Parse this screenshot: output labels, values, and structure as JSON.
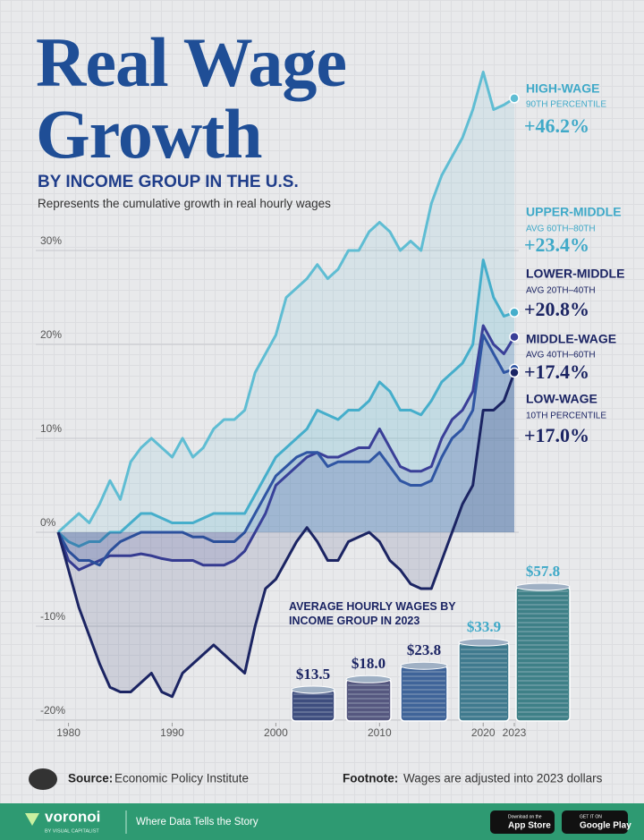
{
  "header": {
    "title": "Real Wage Growth",
    "subtitle": "BY INCOME GROUP IN THE U.S.",
    "description": "Represents the cumulative growth in real hourly wages"
  },
  "chart_data": [
    {
      "type": "line",
      "x": [
        1979,
        1980,
        1981,
        1982,
        1983,
        1984,
        1985,
        1986,
        1987,
        1988,
        1989,
        1990,
        1991,
        1992,
        1993,
        1994,
        1995,
        1996,
        1997,
        1998,
        1999,
        2000,
        2001,
        2002,
        2003,
        2004,
        2005,
        2006,
        2007,
        2008,
        2009,
        2010,
        2011,
        2012,
        2013,
        2014,
        2015,
        2016,
        2017,
        2018,
        2019,
        2020,
        2021,
        2022,
        2023
      ],
      "xlim": [
        1979,
        2023
      ],
      "xticks": [
        1980,
        1990,
        2000,
        2010,
        2020,
        2023
      ],
      "ylim": [
        -21,
        50
      ],
      "yticks": [
        {
          "value": -20,
          "label": "-20%"
        },
        {
          "value": -10,
          "label": "-10%"
        },
        {
          "value": 0,
          "label": "0%"
        },
        {
          "value": 10,
          "label": "10%"
        },
        {
          "value": 20,
          "label": "20%"
        },
        {
          "value": 30,
          "label": "30%"
        }
      ],
      "grid": true,
      "series": [
        {
          "name": "HIGH-WAGE",
          "sublabel": "90TH PERCENTILE",
          "end_label": "+46.2%",
          "color": "#5fbdd3",
          "values": [
            0,
            1,
            2,
            1,
            3,
            5.5,
            3.5,
            7.5,
            9,
            10,
            9,
            8,
            10,
            8,
            9,
            11,
            12,
            12,
            13,
            17,
            19,
            21,
            25,
            26,
            27,
            28.5,
            27,
            28,
            30,
            30,
            32,
            33,
            32,
            30,
            31,
            30,
            35,
            38,
            40,
            42,
            45,
            49,
            45,
            45.5,
            46.2
          ]
        },
        {
          "name": "UPPER-MIDDLE",
          "sublabel": "AVG 60TH–80TH",
          "end_label": "+23.4%",
          "color": "#45aecb",
          "values": [
            0,
            -1,
            -1.5,
            -1,
            -1,
            0,
            0,
            1,
            2,
            2,
            1.5,
            1,
            1,
            1,
            1.5,
            2,
            2,
            2,
            2,
            4,
            6,
            8,
            9,
            10,
            11,
            13,
            12.5,
            12,
            13,
            13,
            14,
            16,
            15,
            13,
            13,
            12.5,
            14,
            16,
            17,
            18,
            20,
            29,
            25,
            23,
            23.4
          ]
        },
        {
          "name": "LOWER-MIDDLE",
          "sublabel": "AVG 20TH–40TH",
          "end_label": "+20.8%",
          "color": "#3a3f98",
          "values": [
            0,
            -3,
            -4,
            -3.5,
            -3,
            -2.5,
            -2.5,
            -2.5,
            -2.3,
            -2.5,
            -2.8,
            -3,
            -3,
            -3,
            -3.5,
            -3.5,
            -3.5,
            -3,
            -2,
            0,
            2,
            5,
            6,
            7,
            8,
            8.5,
            8,
            8,
            8.5,
            9,
            9,
            11,
            9,
            7,
            6.5,
            6.5,
            7,
            10,
            12,
            13,
            15,
            22,
            20,
            19,
            20.8
          ]
        },
        {
          "name": "MIDDLE-WAGE",
          "sublabel": "AVG 40TH–60TH",
          "end_label": "+17.4%",
          "color": "#2f55a3",
          "values": [
            0,
            -2,
            -3,
            -3,
            -3.5,
            -2,
            -1,
            -0.5,
            0,
            0,
            0,
            0,
            0,
            -0.5,
            -0.5,
            -1,
            -1,
            -1,
            0,
            2,
            4,
            6,
            7,
            8,
            8.5,
            8.5,
            7,
            7.5,
            7.5,
            7.5,
            7.5,
            8.5,
            7,
            5.5,
            5,
            5,
            5.5,
            8,
            10,
            11,
            13,
            21,
            19,
            17,
            17.4
          ]
        },
        {
          "name": "LOW-WAGE",
          "sublabel": "10TH PERCENTILE",
          "end_label": "+17.0%",
          "color": "#1b2463",
          "values": [
            0,
            -4,
            -8,
            -11,
            -14,
            -16.5,
            -17,
            -17,
            -16,
            -15,
            -17,
            -17.5,
            -15,
            -14,
            -13,
            -12,
            -13,
            -14,
            -15,
            -10,
            -6,
            -5,
            -3,
            -1,
            0.5,
            -1,
            -3,
            -3,
            -1,
            -0.5,
            0,
            -1,
            -3,
            -4,
            -5.5,
            -6,
            -6,
            -3,
            0,
            3,
            5,
            13,
            13,
            14,
            17
          ]
        }
      ]
    },
    {
      "type": "coins",
      "title": "AVERAGE HOURLY WAGES BY INCOME GROUP IN 2023",
      "categories": [
        null,
        null,
        null,
        null,
        null
      ],
      "values": [
        13.5,
        18.0,
        23.8,
        33.9,
        57.8
      ],
      "value_labels": [
        "$13.5",
        "$18.0",
        "$23.8",
        "$33.9",
        "$57.8"
      ],
      "colors": [
        "#3e4d7e",
        "#55577f",
        "#3f6499",
        "#3f7a8e",
        "#3e8087"
      ]
    }
  ],
  "footer": {
    "source_label": "Source:",
    "source": "Economic Policy Institute",
    "footnote_label": "Footnote:",
    "footnote": "Wages are adjusted into 2023 dollars",
    "brand": "voronoi",
    "brand_sub": "BY VISUAL CAPITALIST",
    "tagline": "Where Data Tells the Story",
    "app_store_top": "Download on the",
    "app_store": "App Store",
    "google_top": "GET IT ON",
    "google": "Google Play"
  }
}
